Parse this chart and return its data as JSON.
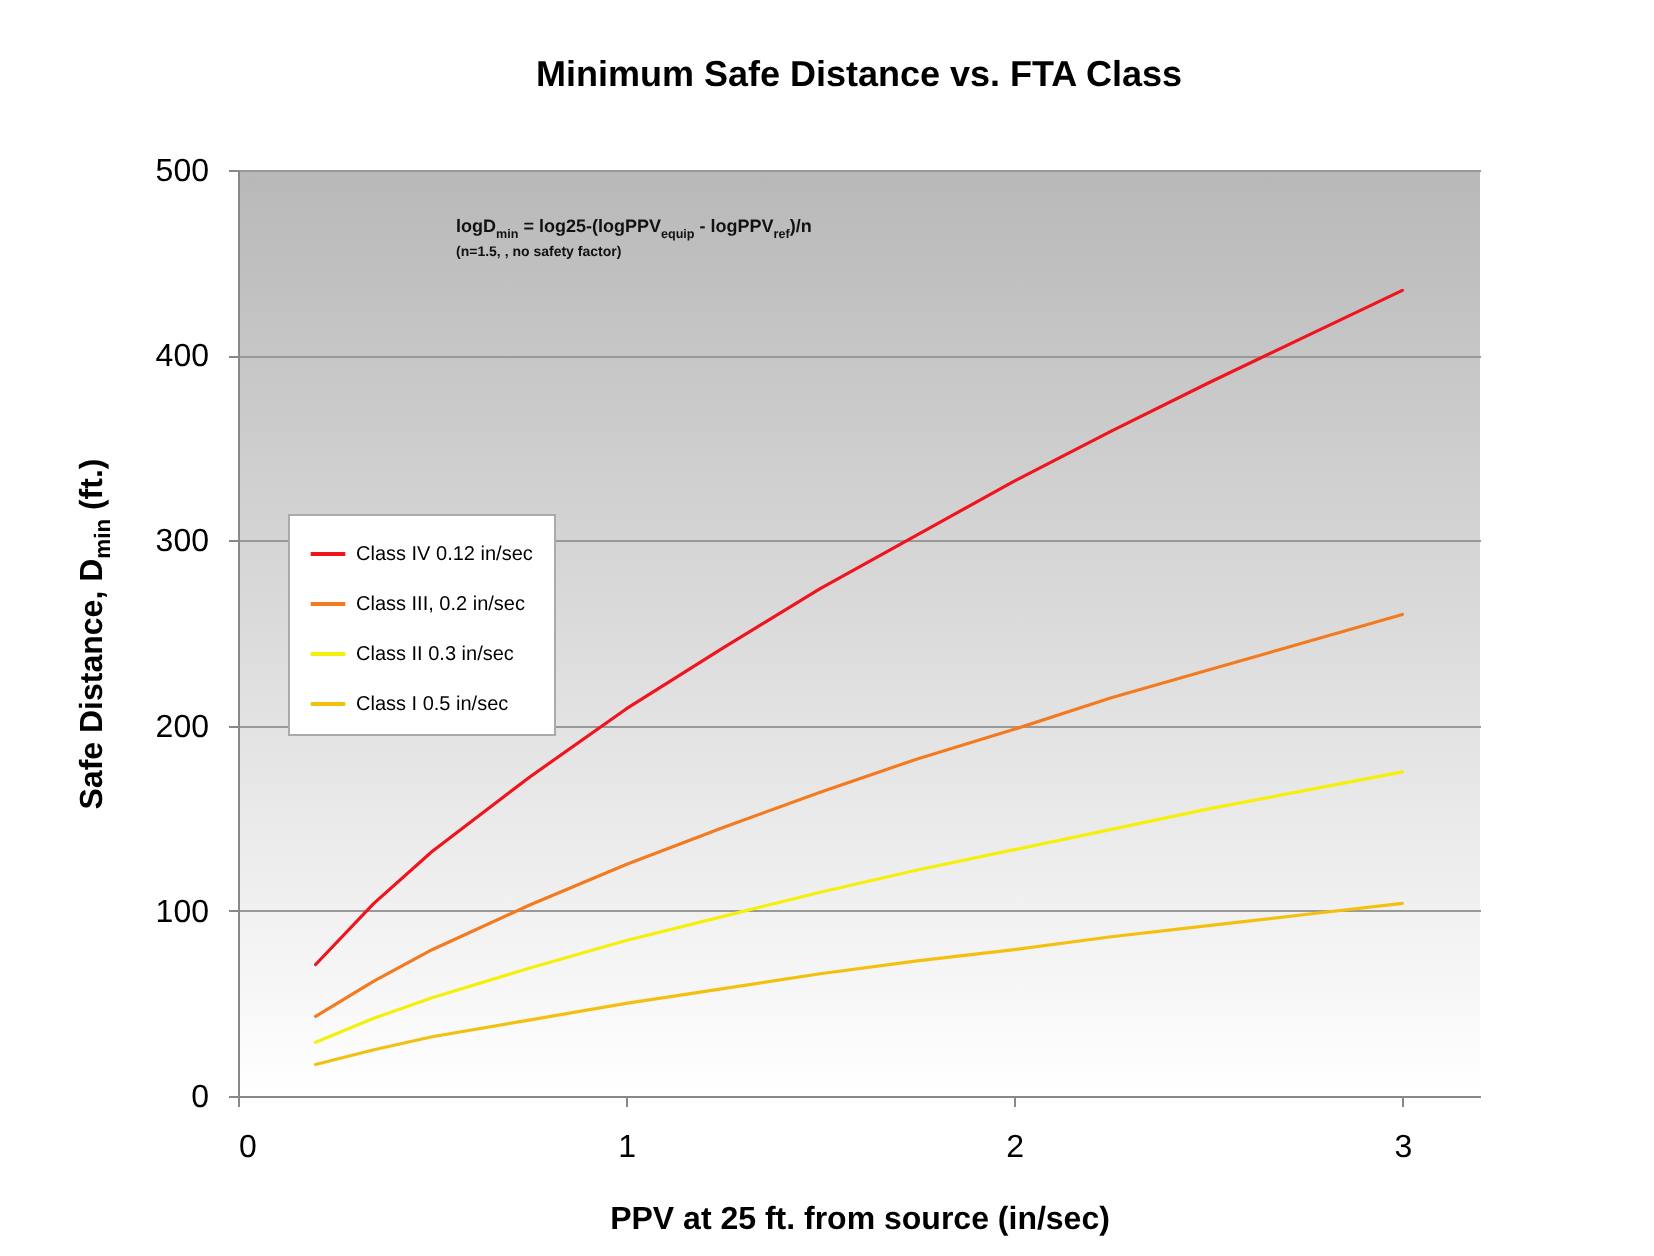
{
  "chart_data": {
    "type": "line",
    "title": "Minimum Safe Distance vs. FTA Class",
    "xlabel": "PPV at 25 ft. from source (in/sec)",
    "ylabel": "Safe Distance, D$_{min}$ (ft.)",
    "annotations": [
      "logD$_{min}$ = log25-(logPPV$_{equip}$ - logPPV$_{ref}$)/n",
      "(n=1.5, , no safety factor)"
    ],
    "x": [
      0.2,
      0.35,
      0.5,
      0.75,
      1,
      1.25,
      1.5,
      1.75,
      2,
      2.25,
      2.5,
      2.75,
      3
    ],
    "series": [
      {
        "name": "Class IV 0.12 in/sec",
        "color": "#f0141e",
        "values": [
          71,
          104,
          132,
          172,
          209,
          242,
          274,
          303,
          332,
          359,
          385,
          410,
          435
        ]
      },
      {
        "name": "Class III, 0.2 in/sec",
        "color": "#f47a20",
        "values": [
          43,
          62,
          79,
          103,
          125,
          145,
          164,
          182,
          198,
          215,
          230,
          245,
          260
        ]
      },
      {
        "name": "Class II 0.3 in/sec",
        "color": "#f5f00a",
        "values": [
          29,
          42,
          53,
          69,
          84,
          97,
          110,
          122,
          133,
          144,
          155,
          165,
          175
        ]
      },
      {
        "name": "Class I 0.5 in/sec",
        "color": "#f4c010",
        "values": [
          17,
          25,
          32,
          41,
          50,
          58,
          66,
          73,
          79,
          86,
          92,
          98,
          104
        ]
      }
    ],
    "xlim": [
      0,
      3.2
    ],
    "xticks": [
      0,
      1,
      2,
      3
    ],
    "ylim": [
      0,
      500
    ],
    "yticks": [
      0,
      100,
      200,
      300,
      400,
      500
    ],
    "grid": "y",
    "legend": "left",
    "marker": "none",
    "line_style": "solid"
  }
}
